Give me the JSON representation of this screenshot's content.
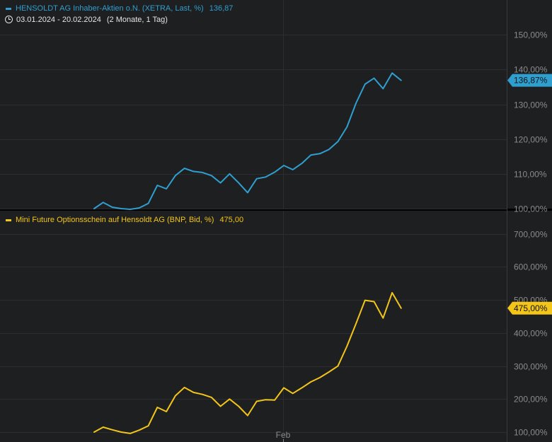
{
  "panel1_legend": {
    "name": "HENSOLDT AG Inhaber-Aktien o.N. (XETRA, Last, %)",
    "value": "136,87"
  },
  "date_range": "03.01.2024 - 20.02.2024",
  "date_span": "(2 Monate, 1 Tag)",
  "panel2_legend": {
    "name": "Mini Future Optionsschein auf Hensoldt AG (BNP, Bid, %)",
    "value": "475,00"
  },
  "colors": {
    "background": "#1e1f21",
    "grid": "#2c2d30",
    "axis_text": "#8b8b8b",
    "series1": "#2f9fd0",
    "series2": "#f2c518"
  },
  "chart_data": [
    {
      "type": "line",
      "panel": "top",
      "ylim": [
        100,
        160
      ],
      "y_ticks": [
        {
          "value": 100,
          "label": "100,00%"
        },
        {
          "value": 110,
          "label": "110,00%"
        },
        {
          "value": 120,
          "label": "120,00%"
        },
        {
          "value": 130,
          "label": "130,00%"
        },
        {
          "value": 140,
          "label": "140,00%"
        },
        {
          "value": 150,
          "label": "150,00%"
        }
      ],
      "series": [
        {
          "name": "HENSOLDT AG Inhaber-Aktien o.N. (XETRA, Last, %)",
          "last_label": "136,87%",
          "values": [
            100.0,
            101.8,
            100.4,
            100.0,
            99.8,
            100.2,
            101.5,
            106.7,
            105.7,
            109.5,
            111.6,
            110.7,
            110.4,
            109.5,
            107.4,
            110.0,
            107.4,
            104.6,
            108.6,
            109.1,
            110.5,
            112.4,
            111.2,
            113.0,
            115.4,
            115.8,
            117.0,
            119.3,
            123.5,
            130.3,
            135.8,
            137.5,
            134.5,
            139.0,
            136.9
          ]
        }
      ]
    },
    {
      "type": "line",
      "panel": "bottom",
      "ylim": [
        70,
        770
      ],
      "y_ticks": [
        {
          "value": 100,
          "label": "100,00%"
        },
        {
          "value": 200,
          "label": "200,00%"
        },
        {
          "value": 300,
          "label": "300,00%"
        },
        {
          "value": 400,
          "label": "400,00%"
        },
        {
          "value": 500,
          "label": "500,00%"
        },
        {
          "value": 600,
          "label": "600,00%"
        },
        {
          "value": 700,
          "label": "700,00%"
        }
      ],
      "x_ticks": [
        {
          "label": "Feb"
        }
      ],
      "series": [
        {
          "name": "Mini Future Optionsschein auf Hensoldt AG (BNP, Bid, %)",
          "last_label": "475,00%",
          "values": [
            100,
            115,
            107,
            100,
            96,
            106,
            119,
            175,
            162,
            210,
            235,
            220,
            214,
            205,
            178,
            200,
            178,
            150,
            193,
            198,
            197,
            234,
            217,
            234,
            252,
            265,
            282,
            300,
            360,
            428,
            499,
            495,
            445,
            522,
            475
          ]
        }
      ]
    }
  ]
}
